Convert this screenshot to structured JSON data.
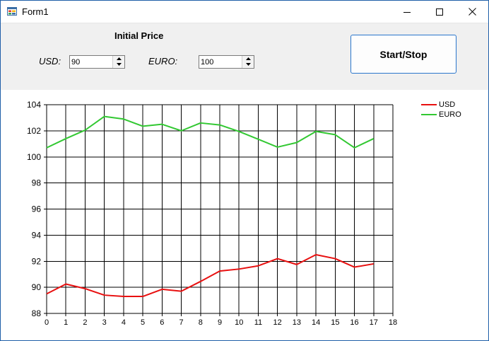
{
  "window": {
    "title": "Form1",
    "icon": "form-app-icon",
    "buttons": [
      "minimize-icon",
      "maximize-icon",
      "close-icon"
    ]
  },
  "controls": {
    "initial_price_label": "Initial Price",
    "usd_label": "USD:",
    "usd_value": "90",
    "euro_label": "EURO:",
    "euro_value": "100",
    "start_stop_label": "Start/Stop"
  },
  "colors": {
    "usd": "#e81010",
    "euro": "#32c832",
    "control_bg": "#f0f0f0",
    "accent": "#2a76cc"
  },
  "chart_data": {
    "type": "line",
    "title": "",
    "xlabel": "",
    "ylabel": "",
    "xlim": [
      0,
      18
    ],
    "ylim": [
      88,
      104
    ],
    "x_ticks": [
      "0",
      "1",
      "2",
      "3",
      "4",
      "5",
      "6",
      "7",
      "8",
      "9",
      "10",
      "11",
      "12",
      "13",
      "14",
      "15",
      "16",
      "17",
      "18"
    ],
    "y_ticks": [
      "88",
      "90",
      "92",
      "94",
      "96",
      "98",
      "100",
      "102",
      "104"
    ],
    "grid": true,
    "legend": "top-right",
    "x": [
      0,
      1,
      2,
      3,
      4,
      5,
      6,
      7,
      8,
      9,
      10,
      11,
      12,
      13,
      14,
      15,
      16,
      17
    ],
    "series": [
      {
        "name": "USD",
        "color": "#e81010",
        "values": [
          89.5,
          90.25,
          89.9,
          89.4,
          89.3,
          89.3,
          89.85,
          89.7,
          90.45,
          91.25,
          91.4,
          91.65,
          92.2,
          91.75,
          92.5,
          92.2,
          91.55,
          91.8
        ]
      },
      {
        "name": "EURO",
        "color": "#32c832",
        "values": [
          100.7,
          101.4,
          102.05,
          103.1,
          102.9,
          102.35,
          102.5,
          102.0,
          102.6,
          102.45,
          101.95,
          101.35,
          100.75,
          101.1,
          101.95,
          101.7,
          100.7,
          101.4
        ]
      }
    ]
  }
}
